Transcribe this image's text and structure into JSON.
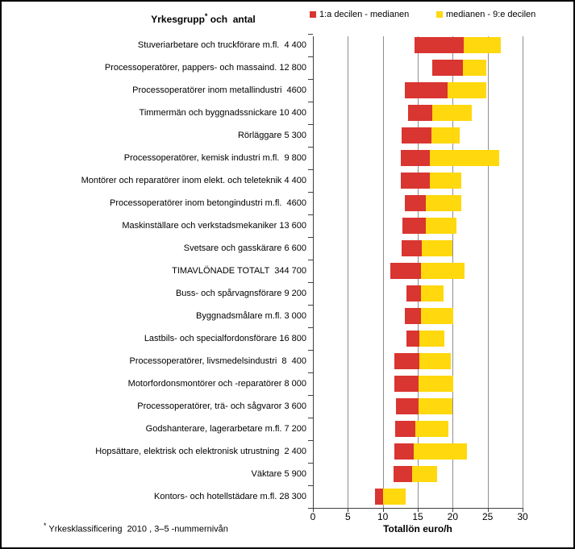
{
  "header": {
    "title": {
      "text": "Yrkesgrupp",
      "marker": "*",
      "suffix": " och  antal"
    }
  },
  "legend": {
    "items": [
      {
        "label": "1:a decilen - medianen",
        "color": "#d93531"
      },
      {
        "label": "medianen - 9:e decilen",
        "color": "#ffd80d"
      }
    ]
  },
  "footnote": {
    "marker": "*",
    "text": " Yrkesklassificering  2010 , 3–5 -nummernivån"
  },
  "chart_data": {
    "type": "bar",
    "orientation": "horizontal",
    "subtype": "range-bars (decile spans)",
    "title": "Yrkesgrupp * och antal",
    "xlabel": "Totallön euro/h",
    "ylabel": "",
    "xlim": [
      0,
      30
    ],
    "xticks": [
      0,
      5,
      10,
      15,
      20,
      25,
      30
    ],
    "grid": true,
    "legend": [
      "1:a decilen - medianen",
      "medianen - 9:e decilen"
    ],
    "legend_position": "top-right",
    "colors": {
      "first_decile_to_median": "#d93531",
      "median_to_ninth_decile": "#ffd80d",
      "gridline": "#8e8e8e"
    },
    "categories": [
      "Stuveriarbetare och truckförare m.fl.  4 400",
      "Processoperatörer, pappers- och massaind. 12 800",
      "Processoperatörer inom metallindustri  4600",
      "Timmermän och byggnadssnickare 10 400",
      "Rörläggare 5 300",
      "Processoperatörer, kemisk industri m.fl.  9 800",
      "Montörer och reparatörer inom elekt. och teleteknik 4 400",
      "Processoperatörer inom betongindustri m.fl.  4600",
      "Maskinställare och verkstadsmekaniker 13 600",
      "Svetsare och gasskärare 6 600",
      "TIMAVLÖNADE TOTALT  344 700",
      "Buss- och spårvagnsförare 9 200",
      "Byggnadsmålare m.fl. 3 000",
      "Lastbils- och specialfordonsförare 16 800",
      "Processoperatörer, livsmedelsindustri  8  400",
      "Motorfordonsmontörer och -reparatörer 8 000",
      "Processoperatörer, trä- och sågvaror 3 600",
      "Godshanterare, lagerarbetare m.fl. 7 200",
      "Hopsättare, elektrisk och elektronisk utrustning  2 400",
      "Väktare 5 900",
      "Kontors- och hotellstädare m.fl. 28 300"
    ],
    "series": [
      {
        "name": "1:a decilen",
        "values": [
          14.5,
          17.1,
          13.2,
          13.6,
          12.7,
          12.6,
          12.6,
          13.2,
          12.8,
          12.7,
          11.1,
          13.4,
          13.1,
          13.4,
          11.7,
          11.6,
          11.9,
          11.8,
          11.6,
          11.5,
          8.9
        ]
      },
      {
        "name": "medianen",
        "values": [
          21.6,
          21.5,
          19.3,
          17.1,
          17.0,
          16.7,
          16.7,
          16.2,
          16.2,
          15.6,
          15.5,
          15.5,
          15.5,
          15.2,
          15.2,
          15.1,
          15.1,
          14.7,
          14.4,
          14.2,
          10.0
        ]
      },
      {
        "name": "9:e decilen",
        "values": [
          26.9,
          24.8,
          24.8,
          22.7,
          21.0,
          26.6,
          21.2,
          21.2,
          20.5,
          20.0,
          21.7,
          18.7,
          20.1,
          18.8,
          19.7,
          20.1,
          20.0,
          19.4,
          22.0,
          17.8,
          13.3
        ]
      }
    ]
  }
}
